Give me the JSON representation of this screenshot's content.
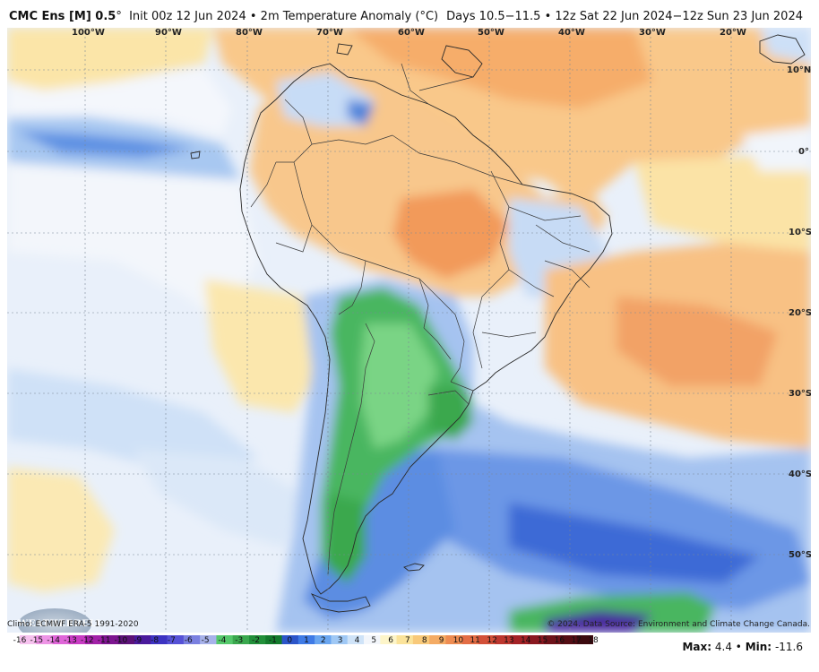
{
  "header": {
    "model": "CMC Ens [M] 0.5",
    "model_suffix": "°",
    "init": "Init 00z 12 Jun 2024",
    "sep": "•",
    "variable": "2m Temperature Anomaly (°C)",
    "valid": "Days 10.5−11.5 • 12z Sat 22 Jun 2024−12z Sun 23 Jun 2024"
  },
  "map": {
    "lon_labels": [
      "100°W",
      "90°W",
      "80°W",
      "70°W",
      "60°W",
      "50°W",
      "40°W",
      "30°W",
      "20°W"
    ],
    "lat_labels": [
      "10°N",
      "0°",
      "10°S",
      "20°S",
      "30°S",
      "40°S",
      "50°S"
    ],
    "logo_text": "WEATHERBELL",
    "climo": "Climo: ECMWF ERA-5 1991-2020",
    "copyright": "© 2024. Data Source: Environment and Climate Change Canada."
  },
  "colorbar": {
    "labels": [
      "-16",
      "-15",
      "-14",
      "-13",
      "-12",
      "-11",
      "-10",
      "-9",
      "-8",
      "-7",
      "-6",
      "-5",
      "-4",
      "-3",
      "-2",
      "-1",
      "0",
      "1",
      "2",
      "3",
      "4",
      "5",
      "6",
      "7",
      "8",
      "9",
      "10",
      "11",
      "12",
      "13",
      "14",
      "15",
      "16",
      "17",
      "18"
    ],
    "colors": [
      "#f7c2ef",
      "#ee94e6",
      "#e066d9",
      "#c93cc4",
      "#a221a8",
      "#7d1590",
      "#5c1278",
      "#4a1a9c",
      "#3d33c2",
      "#5551d6",
      "#7a80e0",
      "#a7b2ea",
      "#55c86b",
      "#3aa84e",
      "#22903a",
      "#147a2c",
      "#2c55c9",
      "#3f7be6",
      "#6aa6f0",
      "#9fc8f5",
      "#cfe3f8",
      "#f3f6fb",
      "#fdf5c9",
      "#fbe39a",
      "#f8c97a",
      "#f4ab64",
      "#ee8c52",
      "#e36d45",
      "#d35039",
      "#bd372f",
      "#a42226",
      "#8a1820",
      "#6e121a",
      "#540d14",
      "#3c0a0f"
    ]
  },
  "stats": {
    "max_label": "Max:",
    "max_value": "4.4",
    "bullet": "•",
    "min_label": "Min:",
    "min_value": "-11.6"
  }
}
